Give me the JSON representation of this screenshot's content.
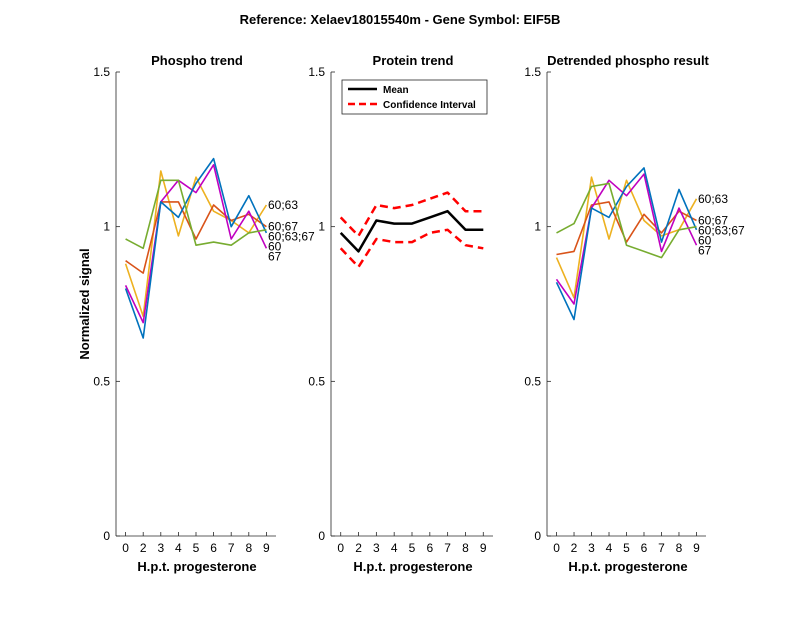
{
  "figure_title": "Reference:  Xelaev18015540m - Gene Symbol:  EIF5B",
  "colors": {
    "blue": "#0072BD",
    "orange": "#D95319",
    "yellow": "#EDB120",
    "purple": "#C000C0",
    "green": "#77AC30",
    "mean": "#000000",
    "ci": "#FF0000"
  },
  "chart_data": [
    {
      "type": "line",
      "title": "Phospho trend",
      "xlabel": "H.p.t. progesterone",
      "ylabel": "Normalized signal",
      "x": [
        0,
        2,
        3,
        4,
        5,
        6,
        7,
        8,
        9
      ],
      "x_tick_labels": [
        "0",
        "2",
        "3",
        "4",
        "5",
        "6",
        "7",
        "8",
        "9"
      ],
      "ylim": [
        0,
        1.5
      ],
      "y_ticks": [
        0,
        0.5,
        1,
        1.5
      ],
      "y_tick_labels": [
        "0",
        "0.5",
        "1",
        "1.5"
      ],
      "grid": false,
      "series": [
        {
          "color_key": "yellow",
          "end_label": "60;63",
          "values": [
            0.88,
            0.71,
            1.18,
            0.97,
            1.16,
            1.05,
            1.02,
            0.98,
            1.07
          ]
        },
        {
          "color_key": "orange",
          "end_label": "60;67",
          "values": [
            0.89,
            0.85,
            1.08,
            1.08,
            0.96,
            1.07,
            1.02,
            1.04,
            1.0
          ]
        },
        {
          "color_key": "purple",
          "end_label": "67",
          "values": [
            0.81,
            0.69,
            1.08,
            1.15,
            1.11,
            1.2,
            0.96,
            1.05,
            0.93
          ]
        },
        {
          "color_key": "blue",
          "end_label": "60",
          "values": [
            0.8,
            0.64,
            1.08,
            1.03,
            1.14,
            1.22,
            1.0,
            1.1,
            0.98
          ]
        },
        {
          "color_key": "green",
          "end_label": "60;63;67",
          "values": [
            0.96,
            0.93,
            1.15,
            1.15,
            0.94,
            0.95,
            0.94,
            0.98,
            0.99
          ]
        }
      ]
    },
    {
      "type": "line",
      "title": "Protein trend",
      "xlabel": "H.p.t. progesterone",
      "x": [
        0,
        2,
        3,
        4,
        5,
        6,
        7,
        8,
        9
      ],
      "x_tick_labels": [
        "0",
        "2",
        "3",
        "4",
        "5",
        "6",
        "7",
        "8",
        "9"
      ],
      "ylim": [
        0,
        1.5
      ],
      "y_ticks": [
        0,
        0.5,
        1,
        1.5
      ],
      "y_tick_labels": [
        "0",
        "0.5",
        "1",
        "1.5"
      ],
      "grid": false,
      "legend": {
        "placement": "top-left",
        "entries": [
          "Mean",
          "Confidence Interval"
        ]
      },
      "series": [
        {
          "name": "Mean",
          "color_key": "mean",
          "style": "solid",
          "values": [
            0.98,
            0.92,
            1.02,
            1.01,
            1.01,
            1.03,
            1.05,
            0.99,
            0.99
          ]
        },
        {
          "name": "Confidence Interval",
          "color_key": "ci",
          "style": "dashed",
          "values": [
            1.03,
            0.97,
            1.07,
            1.06,
            1.07,
            1.09,
            1.11,
            1.05,
            1.05
          ]
        },
        {
          "color_key": "ci",
          "style": "dashed",
          "values": [
            0.93,
            0.87,
            0.96,
            0.95,
            0.95,
            0.98,
            0.99,
            0.94,
            0.93
          ]
        }
      ]
    },
    {
      "type": "line",
      "title": "Detrended phospho result",
      "xlabel": "H.p.t. progesterone",
      "x": [
        0,
        2,
        3,
        4,
        5,
        6,
        7,
        8,
        9
      ],
      "x_tick_labels": [
        "0",
        "2",
        "3",
        "4",
        "5",
        "6",
        "7",
        "8",
        "9"
      ],
      "ylim": [
        0,
        1.5
      ],
      "y_ticks": [
        0,
        0.5,
        1,
        1.5
      ],
      "y_tick_labels": [
        "0",
        "0.5",
        "1",
        "1.5"
      ],
      "grid": false,
      "series": [
        {
          "color_key": "yellow",
          "end_label": "60;63",
          "values": [
            0.9,
            0.77,
            1.16,
            0.96,
            1.15,
            1.02,
            0.97,
            0.99,
            1.09
          ]
        },
        {
          "color_key": "orange",
          "end_label": "60;67",
          "values": [
            0.91,
            0.92,
            1.07,
            1.08,
            0.95,
            1.04,
            0.98,
            1.05,
            1.02
          ]
        },
        {
          "color_key": "purple",
          "end_label": "67",
          "values": [
            0.83,
            0.75,
            1.06,
            1.15,
            1.1,
            1.17,
            0.92,
            1.06,
            0.94
          ]
        },
        {
          "color_key": "blue",
          "end_label": "60",
          "values": [
            0.82,
            0.7,
            1.06,
            1.03,
            1.13,
            1.19,
            0.95,
            1.12,
            0.99
          ]
        },
        {
          "color_key": "green",
          "end_label": "60;63;67",
          "values": [
            0.98,
            1.01,
            1.13,
            1.14,
            0.94,
            0.92,
            0.9,
            0.99,
            1.0
          ]
        }
      ]
    }
  ]
}
